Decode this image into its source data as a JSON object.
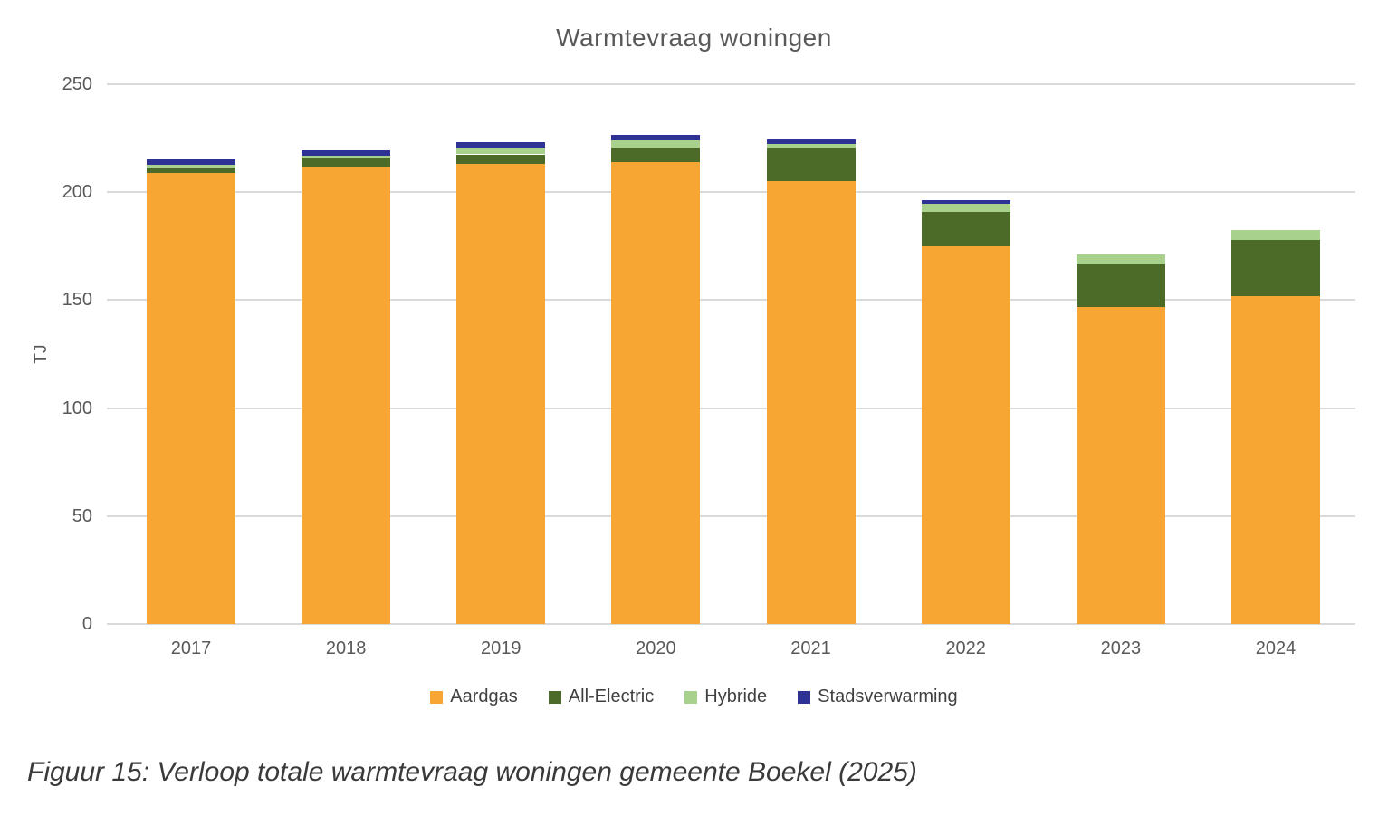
{
  "chart_data": {
    "type": "bar",
    "stacked": true,
    "title": "Warmtevraag woningen",
    "xlabel": "",
    "ylabel": "TJ",
    "ylim": [
      0,
      250
    ],
    "yticks": [
      0,
      50,
      100,
      150,
      200,
      250
    ],
    "grid": "horizontal",
    "legend_position": "bottom",
    "categories": [
      "2017",
      "2018",
      "2019",
      "2020",
      "2021",
      "2022",
      "2023",
      "2024"
    ],
    "series": [
      {
        "name": "Aardgas",
        "color": "#F7A633",
        "values": [
          209,
          212,
          213,
          214,
          205,
          175,
          147,
          152
        ]
      },
      {
        "name": "All-Electric",
        "color": "#4C6A28",
        "values": [
          2.5,
          3.5,
          4.5,
          6.5,
          15.5,
          16,
          19.5,
          26
        ]
      },
      {
        "name": "Hybride",
        "color": "#A9D18E",
        "values": [
          1,
          1.5,
          3,
          3.5,
          2,
          3.5,
          4.5,
          4.5
        ]
      },
      {
        "name": "Stadsverwarming",
        "color": "#2F3295",
        "values": [
          2.5,
          2.5,
          2.5,
          2.5,
          2,
          2,
          0,
          0
        ]
      }
    ]
  },
  "caption": "Figuur 15: Verloop totale warmtevraag woningen gemeente Boekel (2025)",
  "colors": {
    "background": "#FFFFFF",
    "grid": "#D9D9D9",
    "axis_text": "#595959",
    "title_text": "#595959",
    "legend_text": "#404040",
    "caption_text": "#3A3A3A"
  }
}
